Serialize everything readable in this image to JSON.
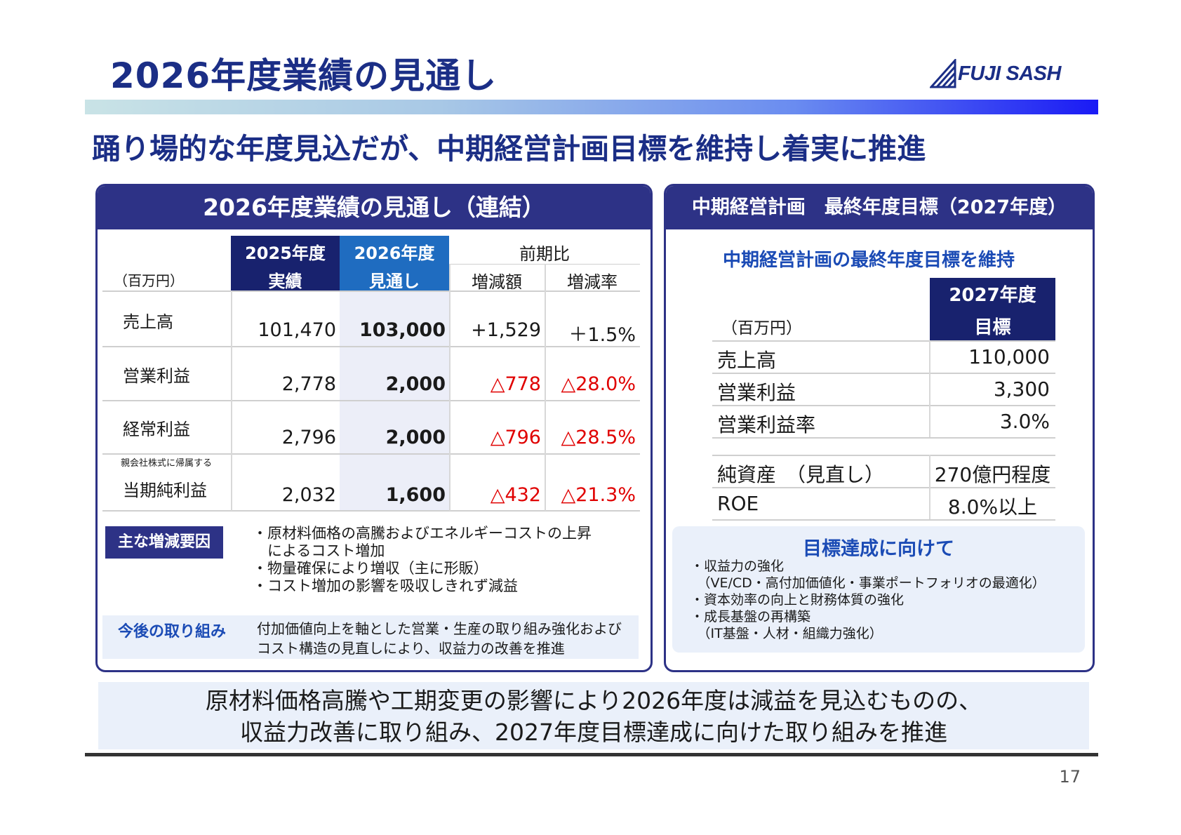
{
  "header": {
    "title": "2026年度業績の見通し",
    "brand": "FUJI SASH",
    "headline": "踊り場的な年度見込だが、中期経営計画目標を維持し着実に推進"
  },
  "left_panel": {
    "title": "2026年度業績の見通し（連結）",
    "unit": "（百万円）",
    "col_2025": [
      "2025年度",
      "実績"
    ],
    "col_2026": [
      "2026年度",
      "見通し"
    ],
    "prior_period": "前期比",
    "col_change": "増減額",
    "col_rate": "増減率",
    "rows": [
      {
        "label": "売上高",
        "sub": "",
        "v2025": "101,470",
        "v2026": "103,000",
        "change": "+1,529",
        "rate": "＋1.5%"
      },
      {
        "label": "営業利益",
        "sub": "",
        "v2025": "2,778",
        "v2026": "2,000",
        "change": "△778",
        "rate": "△28.0%"
      },
      {
        "label": "経常利益",
        "sub": "",
        "v2025": "2,796",
        "v2026": "2,000",
        "change": "△796",
        "rate": "△28.5%"
      },
      {
        "label": "当期純利益",
        "sub": "親会社株式に帰属する",
        "v2025": "2,032",
        "v2026": "1,600",
        "change": "△432",
        "rate": "△21.3%"
      }
    ],
    "factors_label": "主な増減要因",
    "factors": [
      "・原材料価格の高騰およびエネルギーコストの上昇",
      "　によるコスト増加",
      "・物量確保により増収（主に形販）",
      "・コスト増加の影響を吸収しきれず減益"
    ],
    "future_label": "今後の取り組み",
    "future_lines": [
      "付加価値向上を軸とした営業・生産の取り組み強化および",
      "コスト構造の見直しにより、収益力の改善を推進"
    ]
  },
  "right_panel": {
    "title": "中期経営計画　最終年度目標（2027年度）",
    "subtitle": "中期経営計画の最終年度目標を維持",
    "unit": "（百万円）",
    "col_head": [
      "2027年度",
      "目標"
    ],
    "rows": [
      {
        "label": "売上高",
        "value": "110,000"
      },
      {
        "label": "営業利益",
        "value": "3,300"
      },
      {
        "label": "営業利益率",
        "value": "3.0%"
      }
    ],
    "rows2": [
      {
        "label": "純資産　（見直し）",
        "value": "270億円程度"
      },
      {
        "label": "ROE",
        "value": "8.0%以上"
      }
    ],
    "target_title": "目標達成に向けて",
    "target_lines": [
      "・収益力の強化",
      "　（VE/CD・高付加価値化・事業ポートフォリオの最適化）",
      "・資本効率の向上と財務体質の強化",
      "・成長基盤の再構築",
      "　（IT基盤・人材・組織力強化）"
    ]
  },
  "summary": {
    "line1": "原材料価格高騰や工期変更の影響により2026年度は減益を見込むものの、",
    "line2": "収益力改善に取り組み、2027年度目標達成に向けた取り組みを推進"
  },
  "page_number": "17",
  "colors": {
    "navy": "#2d3286",
    "title_blue": "#1b2e86",
    "accent_blue": "#1f6cc0",
    "negative_red": "#e00000"
  }
}
